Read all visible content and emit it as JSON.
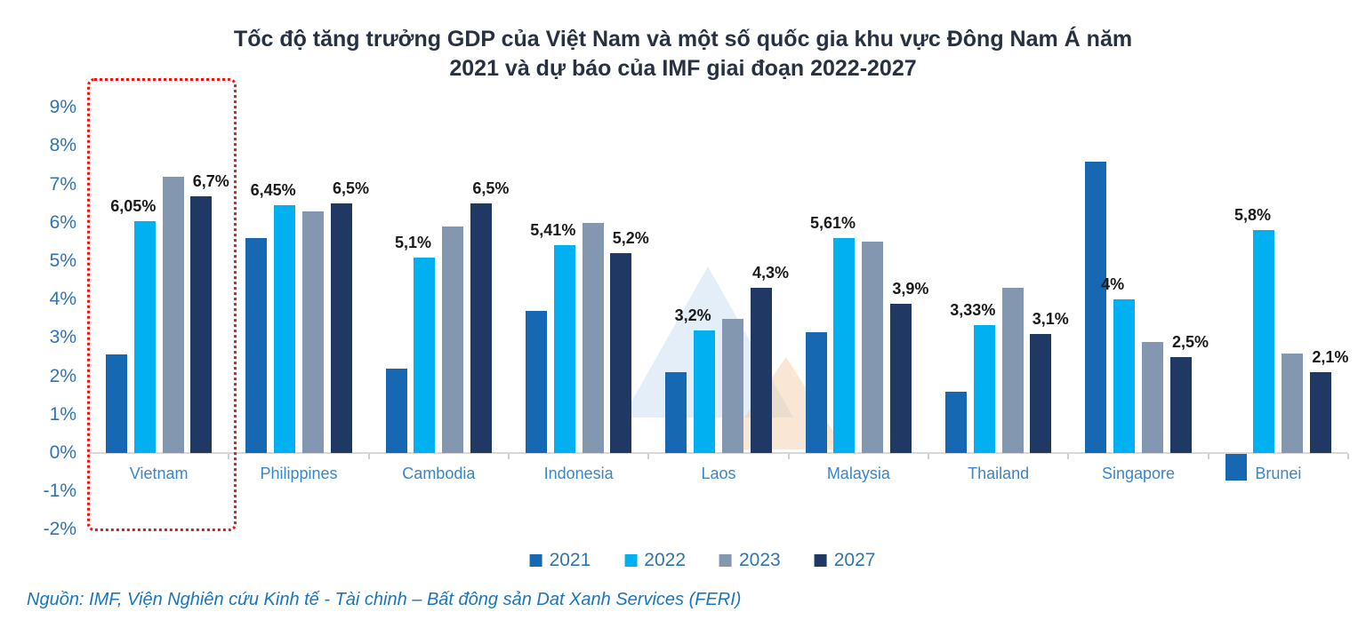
{
  "chart_data": {
    "type": "bar",
    "title": "Tốc độ tăng trưởng GDP của Việt Nam và một số quốc gia khu vực Đông Nam Á năm 2021 và dự báo của IMF giai đoạn 2022-2027",
    "title_lines": [
      "Tốc độ tăng trưởng GDP của Việt Nam và một số quốc gia khu vực Đông Nam Á năm",
      "2021 và dự báo của IMF giai đoạn 2022-2027"
    ],
    "categories": [
      "Vietnam",
      "Philippines",
      "Cambodia",
      "Indonesia",
      "Laos",
      "Malaysia",
      "Thailand",
      "Singapore",
      "Brunei"
    ],
    "series": [
      {
        "name": "2021",
        "color": "#1768B3",
        "values": [
          2.58,
          5.6,
          2.2,
          3.7,
          2.1,
          3.15,
          1.6,
          7.6,
          -0.7
        ]
      },
      {
        "name": "2022",
        "color": "#00B0F0",
        "values": [
          6.05,
          6.45,
          5.1,
          5.41,
          3.2,
          5.61,
          3.33,
          4.0,
          5.8
        ],
        "labels": [
          "6,05%",
          "6,45%",
          "5,1%",
          "5,41%",
          "3,2%",
          "5,61%",
          "3,33%",
          "4%",
          "5,8%"
        ]
      },
      {
        "name": "2023",
        "color": "#8497B0",
        "values": [
          7.2,
          6.3,
          5.9,
          6.0,
          3.5,
          5.5,
          4.3,
          2.9,
          2.6
        ]
      },
      {
        "name": "2027",
        "color": "#1F3864",
        "values": [
          6.7,
          6.5,
          6.5,
          5.2,
          4.3,
          3.9,
          3.1,
          2.5,
          2.1
        ],
        "labels": [
          "6,7%",
          "6,5%",
          "6,5%",
          "5,2%",
          "4,3%",
          "3,9%",
          "3,1%",
          "2,5%",
          "2,1%"
        ]
      }
    ],
    "ylim": [
      -2,
      9
    ],
    "ytick_labels": [
      "9%",
      "8%",
      "7%",
      "6%",
      "5%",
      "4%",
      "3%",
      "2%",
      "1%",
      "0%",
      "-1%",
      "-2%"
    ],
    "ytick_values": [
      9,
      8,
      7,
      6,
      5,
      4,
      3,
      2,
      1,
      0,
      -1,
      -2
    ],
    "grid": false,
    "legend_position": "bottom",
    "highlighted_category": "Vietnam",
    "highlight_color": "#F01414"
  },
  "legend": {
    "items": [
      "2021",
      "2022",
      "2023",
      "2027"
    ]
  },
  "source": "Nguồn: IMF, Viện Nghiên cứu Kinh tế - Tài chinh – Bất đông sản Dat Xanh Services (FERI)"
}
